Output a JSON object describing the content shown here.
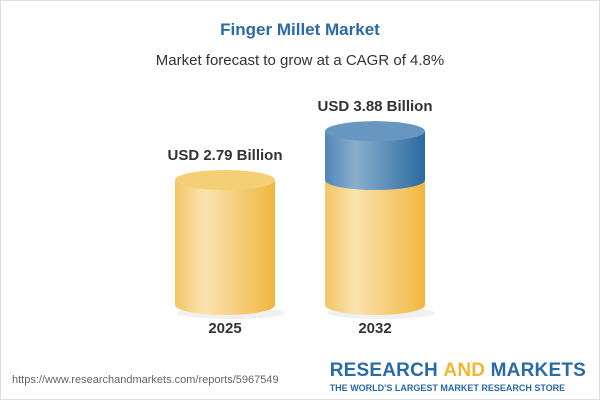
{
  "title": "Finger Millet Market",
  "subtitle": "Market forecast to grow at a CAGR of 4.8%",
  "chart_data": {
    "type": "bar",
    "categories": [
      "2025",
      "2032"
    ],
    "values": [
      2.79,
      3.88
    ],
    "data_labels": [
      "USD 2.79 Billion",
      "USD 3.88 Billion"
    ],
    "unit": "USD Billion",
    "colors": {
      "base": "#f2c45a",
      "growth": "#3f7db0"
    }
  },
  "footer": {
    "url": "https://www.researchandmarkets.com/reports/5967549"
  },
  "logo": {
    "word1": "RESEARCH ",
    "word2": "AND",
    "word3": " MARKETS",
    "tagline": "THE WORLD'S LARGEST MARKET RESEARCH STORE"
  }
}
